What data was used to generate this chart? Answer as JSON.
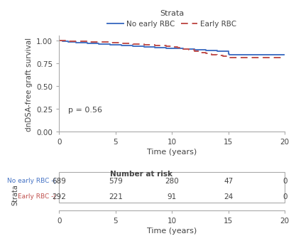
{
  "ylabel": "dnDSA-free graft survival",
  "xlabel": "Time (years)",
  "xlim": [
    0,
    20
  ],
  "ylim": [
    0.0,
    1.05
  ],
  "yticks": [
    0.0,
    0.25,
    0.5,
    0.75,
    1.0
  ],
  "xticks": [
    0,
    5,
    10,
    15,
    20
  ],
  "p_text": "p = 0.56",
  "line1_color": "#4472C4",
  "line2_color": "#C0504D",
  "line1_label": "No early RBC",
  "line2_label": "Early RBC",
  "no_early_rbc_x": [
    0,
    0.3,
    0.8,
    1.5,
    2,
    2.5,
    3,
    3.5,
    4,
    4.5,
    5,
    5.5,
    6,
    6.5,
    7,
    7.5,
    8,
    8.5,
    9,
    9.5,
    10,
    10.5,
    11,
    11.5,
    12,
    12.5,
    13,
    13.5,
    14,
    14.5,
    15,
    15.05,
    16,
    17,
    18,
    19,
    20
  ],
  "no_early_rbc_y": [
    1.0,
    0.993,
    0.987,
    0.978,
    0.973,
    0.969,
    0.966,
    0.962,
    0.958,
    0.954,
    0.95,
    0.947,
    0.943,
    0.94,
    0.936,
    0.932,
    0.929,
    0.925,
    0.921,
    0.917,
    0.913,
    0.91,
    0.907,
    0.903,
    0.899,
    0.895,
    0.891,
    0.887,
    0.883,
    0.879,
    0.85,
    0.845,
    0.845,
    0.845,
    0.845,
    0.845,
    0.845
  ],
  "early_rbc_x": [
    0,
    0.3,
    0.8,
    1.5,
    2,
    2.5,
    3,
    3.5,
    4,
    4.5,
    5,
    5.5,
    6,
    6.5,
    7,
    7.5,
    8,
    8.5,
    9,
    9.5,
    10,
    10.5,
    11,
    11.5,
    12,
    12.5,
    13,
    13.5,
    14,
    14.5,
    15,
    15.05,
    16,
    17,
    18,
    19,
    20
  ],
  "early_rbc_y": [
    1.0,
    0.997,
    0.994,
    0.991,
    0.989,
    0.987,
    0.984,
    0.982,
    0.98,
    0.977,
    0.974,
    0.971,
    0.967,
    0.963,
    0.959,
    0.955,
    0.951,
    0.947,
    0.942,
    0.937,
    0.931,
    0.918,
    0.906,
    0.894,
    0.882,
    0.87,
    0.858,
    0.847,
    0.836,
    0.825,
    0.814,
    0.81,
    0.81,
    0.81,
    0.81,
    0.81,
    0.81
  ],
  "risk_table": {
    "No early RBC": [
      689,
      579,
      280,
      47,
      0
    ],
    "Early RBC": [
      292,
      221,
      91,
      24,
      0
    ]
  },
  "risk_times": [
    0,
    5,
    10,
    15,
    20
  ],
  "bg_color": "#ffffff",
  "text_color": "#444444",
  "spine_color": "#aaaaaa",
  "no_early_rbc_label_color": "#4472C4",
  "early_rbc_label_color": "#C0504D"
}
